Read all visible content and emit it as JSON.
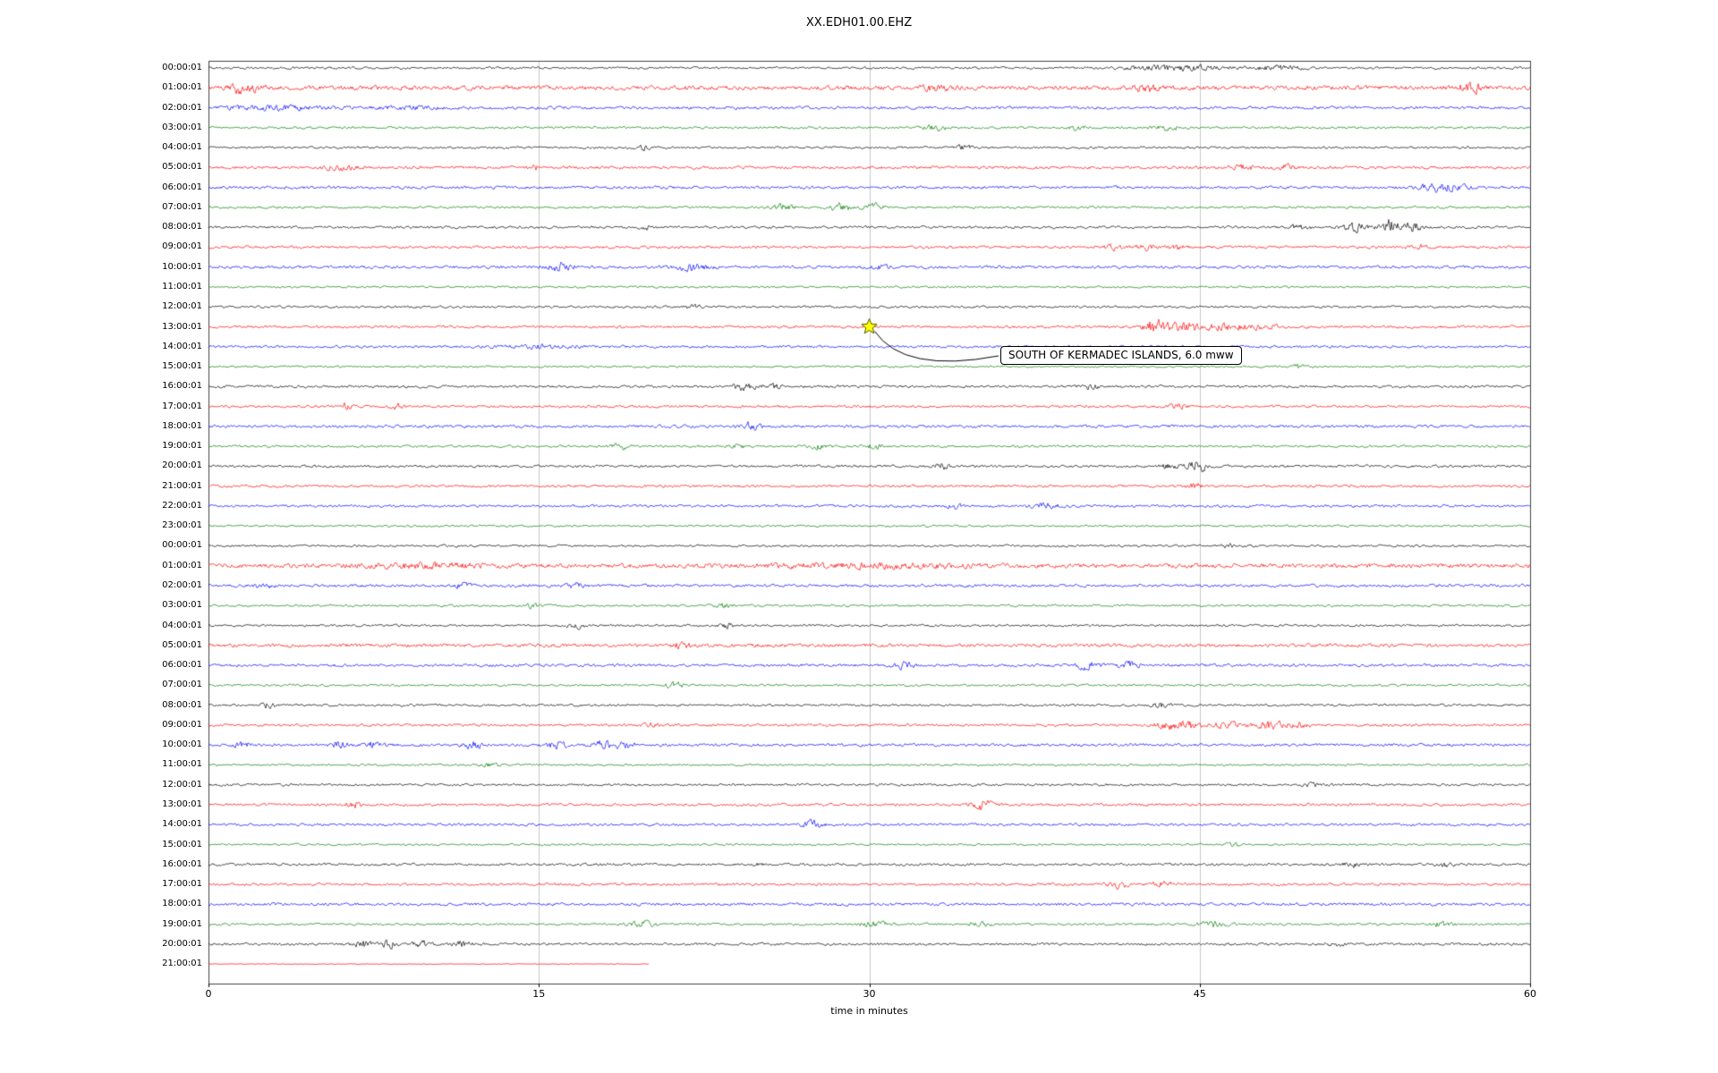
{
  "chart_data": {
    "type": "line",
    "subtype": "helicorder-seismogram",
    "title": "XX.EDH01.00.EHZ",
    "xlabel": "time in minutes",
    "x_range": [
      0,
      60
    ],
    "x_ticks": [
      0,
      15,
      30,
      45,
      60
    ],
    "grid": "vertical-only",
    "trace_colors_cycle": [
      "#000000",
      "#ff0000",
      "#0000ff",
      "#008000"
    ],
    "annotation": {
      "text": "SOUTH OF KERMADEC ISLANDS, 6.0 mww",
      "row_index": 13,
      "row_label": "13:00:01",
      "minute": 30,
      "marker": "yellow-star",
      "marker_color": "#ffff00"
    },
    "rows": [
      {
        "label": "00:00:01",
        "noise": 0.8,
        "events": [
          [
            44,
            1.8,
            1.5
          ],
          [
            48.5,
            1.4,
            0.8
          ]
        ]
      },
      {
        "label": "01:00:01",
        "noise": 1.5,
        "events": [
          [
            1.3,
            3.5,
            0.25
          ],
          [
            2.2,
            2.5,
            0.3
          ],
          [
            33,
            1.5,
            0.5
          ],
          [
            42.5,
            2.5,
            0.4
          ],
          [
            57.3,
            3,
            0.4
          ]
        ]
      },
      {
        "label": "02:00:01",
        "noise": 1.0,
        "events": [
          [
            3,
            1.5,
            1.5
          ],
          [
            9,
            1,
            1
          ]
        ]
      },
      {
        "label": "03:00:01",
        "noise": 0.8,
        "events": [
          [
            33,
            1.6,
            0.4
          ],
          [
            39.5,
            1.6,
            0.3
          ],
          [
            43.5,
            1.8,
            0.4
          ]
        ]
      },
      {
        "label": "04:00:01",
        "noise": 0.8,
        "events": [
          [
            19.8,
            2.2,
            0.15
          ],
          [
            34.3,
            2.2,
            0.2
          ]
        ]
      },
      {
        "label": "05:00:01",
        "noise": 1.0,
        "events": [
          [
            6,
            1.8,
            0.6
          ],
          [
            14.8,
            1.4,
            0.2
          ],
          [
            47,
            1.8,
            0.4
          ],
          [
            48.8,
            2.2,
            0.3
          ]
        ]
      },
      {
        "label": "06:00:01",
        "noise": 1.0,
        "events": [
          [
            56,
            2.5,
            0.8
          ]
        ]
      },
      {
        "label": "07:00:01",
        "noise": 0.8,
        "events": [
          [
            26,
            1.8,
            0.4
          ],
          [
            28.7,
            2.5,
            0.4
          ],
          [
            30.2,
            2.2,
            0.3
          ]
        ]
      },
      {
        "label": "08:00:01",
        "noise": 0.9,
        "events": [
          [
            19.8,
            2.2,
            0.15
          ],
          [
            49.5,
            1.6,
            0.4
          ],
          [
            52,
            2.5,
            0.4
          ],
          [
            53.6,
            5,
            0.3
          ],
          [
            54.6,
            3.5,
            0.3
          ]
        ]
      },
      {
        "label": "09:00:01",
        "noise": 0.9,
        "events": [
          [
            41,
            1.8,
            0.3
          ],
          [
            42.5,
            1.8,
            0.3
          ],
          [
            44,
            1.8,
            0.3
          ],
          [
            55,
            1.4,
            0.3
          ]
        ]
      },
      {
        "label": "10:00:01",
        "noise": 1.0,
        "events": [
          [
            16,
            2.6,
            0.4
          ],
          [
            22,
            2.2,
            0.6
          ],
          [
            30.5,
            1.4,
            0.3
          ]
        ]
      },
      {
        "label": "11:00:01",
        "noise": 0.7,
        "events": []
      },
      {
        "label": "12:00:01",
        "noise": 0.8,
        "events": [
          [
            22,
            1.3,
            0.3
          ]
        ]
      },
      {
        "label": "13:00:01",
        "noise": 0.9,
        "events": [
          [
            42.9,
            4.5,
            0.3
          ],
          [
            44.2,
            2.8,
            0.6
          ],
          [
            46.5,
            1.8,
            1.5
          ]
        ]
      },
      {
        "label": "14:00:01",
        "noise": 0.9,
        "events": [
          [
            15,
            1.1,
            1.2
          ]
        ]
      },
      {
        "label": "15:00:01",
        "noise": 0.7,
        "events": [
          [
            49.5,
            1.4,
            0.3
          ]
        ]
      },
      {
        "label": "16:00:01",
        "noise": 0.9,
        "events": [
          [
            24.3,
            2.2,
            0.4
          ],
          [
            25.6,
            1.8,
            0.3
          ],
          [
            40,
            1.4,
            0.3
          ]
        ]
      },
      {
        "label": "17:00:01",
        "noise": 0.9,
        "events": [
          [
            6.2,
            2.2,
            0.2
          ],
          [
            8.5,
            2.2,
            0.2
          ],
          [
            44,
            1.8,
            0.3
          ]
        ]
      },
      {
        "label": "18:00:01",
        "noise": 1.0,
        "events": [
          [
            24.6,
            2.6,
            0.25
          ]
        ]
      },
      {
        "label": "19:00:01",
        "noise": 0.8,
        "events": [
          [
            18.7,
            1.8,
            0.3
          ],
          [
            24,
            1.4,
            0.3
          ],
          [
            27.8,
            1.8,
            0.3
          ],
          [
            30.3,
            1.8,
            0.3
          ]
        ]
      },
      {
        "label": "20:00:01",
        "noise": 0.9,
        "events": [
          [
            33.3,
            2.2,
            0.2
          ],
          [
            43.6,
            1.8,
            0.3
          ],
          [
            44.9,
            4.5,
            0.3
          ]
        ]
      },
      {
        "label": "21:00:01",
        "noise": 0.9,
        "events": [
          [
            44.7,
            2.6,
            0.25
          ]
        ]
      },
      {
        "label": "22:00:01",
        "noise": 0.9,
        "events": [
          [
            34,
            1.8,
            0.3
          ],
          [
            37.9,
            1.8,
            0.5
          ]
        ]
      },
      {
        "label": "23:00:01",
        "noise": 0.7,
        "events": []
      },
      {
        "label": "00:00:01",
        "noise": 0.8,
        "events": [
          [
            46.3,
            1.4,
            0.2
          ]
        ]
      },
      {
        "label": "01:00:01",
        "noise": 1.5,
        "events": [
          [
            10,
            1.2,
            2
          ],
          [
            30,
            1.2,
            3
          ]
        ]
      },
      {
        "label": "02:00:01",
        "noise": 1.0,
        "events": [
          [
            2.5,
            1.8,
            0.3
          ],
          [
            11.6,
            2.2,
            0.25
          ],
          [
            16.6,
            2.2,
            0.25
          ]
        ]
      },
      {
        "label": "03:00:01",
        "noise": 0.8,
        "events": [
          [
            14.7,
            1.8,
            0.25
          ],
          [
            23.3,
            1.8,
            0.3
          ]
        ]
      },
      {
        "label": "04:00:01",
        "noise": 0.8,
        "events": [
          [
            16.7,
            1.8,
            0.25
          ],
          [
            23.5,
            1.6,
            0.25
          ]
        ]
      },
      {
        "label": "05:00:01",
        "noise": 1.2,
        "events": [
          [
            21.5,
            1.8,
            0.3
          ]
        ]
      },
      {
        "label": "06:00:01",
        "noise": 1.0,
        "events": [
          [
            31.5,
            1.8,
            0.4
          ],
          [
            39.9,
            2.2,
            0.4
          ],
          [
            41.9,
            2.2,
            0.4
          ]
        ]
      },
      {
        "label": "07:00:01",
        "noise": 0.8,
        "events": [
          [
            21.2,
            1.8,
            0.3
          ]
        ]
      },
      {
        "label": "08:00:01",
        "noise": 0.8,
        "events": [
          [
            2.7,
            1.8,
            0.25
          ],
          [
            43.2,
            1.6,
            0.3
          ]
        ]
      },
      {
        "label": "09:00:01",
        "noise": 0.9,
        "events": [
          [
            20,
            1.8,
            0.2
          ],
          [
            43.6,
            2.6,
            0.4
          ],
          [
            44.6,
            2.6,
            0.3
          ],
          [
            46.2,
            2.2,
            0.4
          ],
          [
            48.2,
            2.6,
            0.5
          ],
          [
            49.6,
            1.8,
            0.3
          ]
        ]
      },
      {
        "label": "10:00:01",
        "noise": 1.0,
        "events": [
          [
            1.5,
            2.2,
            0.25
          ],
          [
            6,
            1.8,
            0.3
          ],
          [
            7.5,
            1.8,
            0.3
          ],
          [
            12,
            2.2,
            0.3
          ],
          [
            15.8,
            2.2,
            0.3
          ],
          [
            17.9,
            2.6,
            0.3
          ],
          [
            18.9,
            2.2,
            0.3
          ]
        ]
      },
      {
        "label": "11:00:01",
        "noise": 0.7,
        "events": [
          [
            12.7,
            1.3,
            0.3
          ]
        ]
      },
      {
        "label": "12:00:01",
        "noise": 0.8,
        "events": [
          [
            50.2,
            1.3,
            0.4
          ]
        ]
      },
      {
        "label": "13:00:01",
        "noise": 0.9,
        "events": [
          [
            6.6,
            2.2,
            0.25
          ],
          [
            35.1,
            3.5,
            0.35
          ]
        ]
      },
      {
        "label": "14:00:01",
        "noise": 0.9,
        "events": [
          [
            27.4,
            2.6,
            0.3
          ]
        ]
      },
      {
        "label": "15:00:01",
        "noise": 0.7,
        "events": [
          [
            46.5,
            1.4,
            0.3
          ]
        ]
      },
      {
        "label": "16:00:01",
        "noise": 0.9,
        "events": [
          [
            25,
            1.3,
            0.2
          ],
          [
            51.9,
            1.8,
            0.25
          ],
          [
            56.1,
            1.6,
            0.25
          ]
        ]
      },
      {
        "label": "17:00:01",
        "noise": 0.9,
        "events": [
          [
            41.3,
            2.2,
            0.3
          ],
          [
            43.3,
            2.2,
            0.3
          ]
        ]
      },
      {
        "label": "18:00:01",
        "noise": 1.0,
        "events": []
      },
      {
        "label": "19:00:01",
        "noise": 0.8,
        "events": [
          [
            19.7,
            2.2,
            0.4
          ],
          [
            30.2,
            1.8,
            0.4
          ],
          [
            35,
            1.8,
            0.4
          ],
          [
            45.6,
            1.8,
            0.5
          ],
          [
            56,
            1.6,
            0.3
          ]
        ]
      },
      {
        "label": "20:00:01",
        "noise": 0.9,
        "events": [
          [
            7,
            2.2,
            0.3
          ],
          [
            8.2,
            2.6,
            0.3
          ],
          [
            9.7,
            1.8,
            0.3
          ],
          [
            11.5,
            1.8,
            0.3
          ],
          [
            51.2,
            1.4,
            0.3
          ]
        ]
      },
      {
        "label": "21:00:01",
        "noise": 0.25,
        "events": [],
        "end_minute": 20
      }
    ]
  }
}
